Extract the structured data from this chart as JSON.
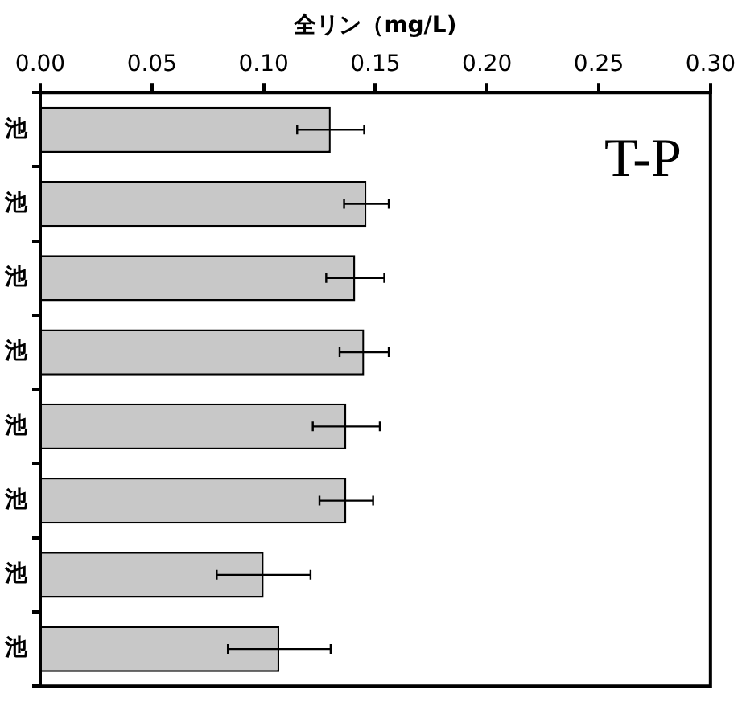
{
  "chart_data": {
    "type": "bar",
    "orientation": "horizontal",
    "xlabel": "全リン（mg/L)",
    "annotations": [
      "T-P"
    ],
    "categories": [
      "池",
      "池",
      "池",
      "池",
      "池",
      "池",
      "池",
      "池"
    ],
    "values": [
      0.13,
      0.146,
      0.141,
      0.145,
      0.137,
      0.137,
      0.1,
      0.107
    ],
    "errors": [
      0.015,
      0.01,
      0.013,
      0.011,
      0.015,
      0.012,
      0.021,
      0.023
    ],
    "color": "#c8c8c8",
    "xlim": [
      0,
      0.3
    ],
    "xticks": [
      {
        "value": 0,
        "label": "0.00"
      },
      {
        "value": 0.05,
        "label": "0.05"
      },
      {
        "value": 0.1,
        "label": "0.10"
      },
      {
        "value": 0.15,
        "label": "0.15"
      },
      {
        "value": 0.2,
        "label": "0.20"
      },
      {
        "value": 0.25,
        "label": "0.25"
      },
      {
        "value": 0.3,
        "label": "0.30"
      }
    ],
    "grid": false,
    "legend": false
  }
}
